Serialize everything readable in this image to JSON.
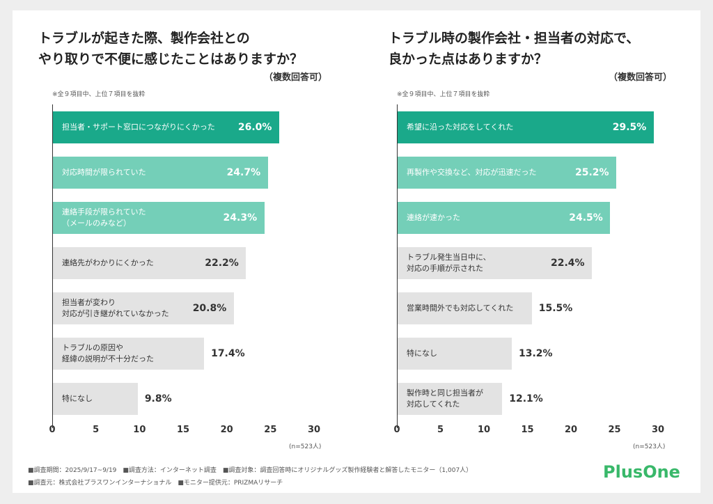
{
  "chart_data": [
    {
      "type": "bar",
      "orientation": "horizontal",
      "title": [
        "トラブルが起きた際、製作会社との",
        "やり取りで不便に感じたことはありますか？"
      ],
      "subtitle": "（複数回答可）",
      "note": "※全９項目中、上位７項目を抜粋",
      "categories": [
        "担当者・サポート窓口につながりにくかった",
        "対応時間が限られていた",
        "連絡手段が限られていた\n（メールのみなど）",
        "連絡先がわかりにくかった",
        "担当者が変わり\n対応が引き継がれていなかった",
        "トラブルの原因や\n経緯の説明が不十分だった",
        "特になし"
      ],
      "values": [
        26.0,
        24.7,
        24.3,
        22.2,
        20.8,
        17.4,
        9.8
      ],
      "value_labels": [
        "26.0%",
        "24.7%",
        "24.3%",
        "22.2%",
        "20.8%",
        "17.4%",
        "9.8%"
      ],
      "colors": [
        "#1aa98a",
        "#74cfb8",
        "#74cfb8",
        "#e3e3e3",
        "#e3e3e3",
        "#e3e3e3",
        "#e3e3e3"
      ],
      "xlim": [
        0,
        30
      ],
      "xticks": [
        0,
        5,
        10,
        15,
        20,
        25,
        30
      ],
      "grid": false,
      "sample_note": "(n=523人)"
    },
    {
      "type": "bar",
      "orientation": "horizontal",
      "title": [
        "トラブル時の製作会社・担当者の対応で、",
        "良かった点はありますか？"
      ],
      "subtitle": "（複数回答可）",
      "note": "※全９項目中、上位７項目を抜粋",
      "categories": [
        "希望に沿った対応をしてくれた",
        "再製作や交換など、対応が迅速だった",
        "連絡が速かった",
        "トラブル発生当日中に、\n対応の手順が示された",
        "営業時間外でも対応してくれた",
        "特になし",
        "製作時と同じ担当者が\n対応してくれた"
      ],
      "values": [
        29.5,
        25.2,
        24.5,
        22.4,
        15.5,
        13.2,
        12.1
      ],
      "value_labels": [
        "29.5%",
        "25.2%",
        "24.5%",
        "22.4%",
        "15.5%",
        "13.2%",
        "12.1%"
      ],
      "colors": [
        "#1aa98a",
        "#74cfb8",
        "#74cfb8",
        "#e3e3e3",
        "#e3e3e3",
        "#e3e3e3",
        "#e3e3e3"
      ],
      "xlim": [
        0,
        30
      ],
      "xticks": [
        0,
        5,
        10,
        15,
        20,
        25,
        30
      ],
      "grid": false,
      "sample_note": "(n=523人)"
    }
  ],
  "footer": {
    "lines": [
      "■調査期間：2025/9/17~9/19　■調査方法：インターネット調査　■調査対象：調査回答時にオリジナルグッズ製作経験者と解答したモニター（1,007人）",
      "■調査元：株式会社プラスワンインターナショナル　■モニター提供元：PRIZMAリサーチ"
    ]
  },
  "logo": "PlusOne"
}
